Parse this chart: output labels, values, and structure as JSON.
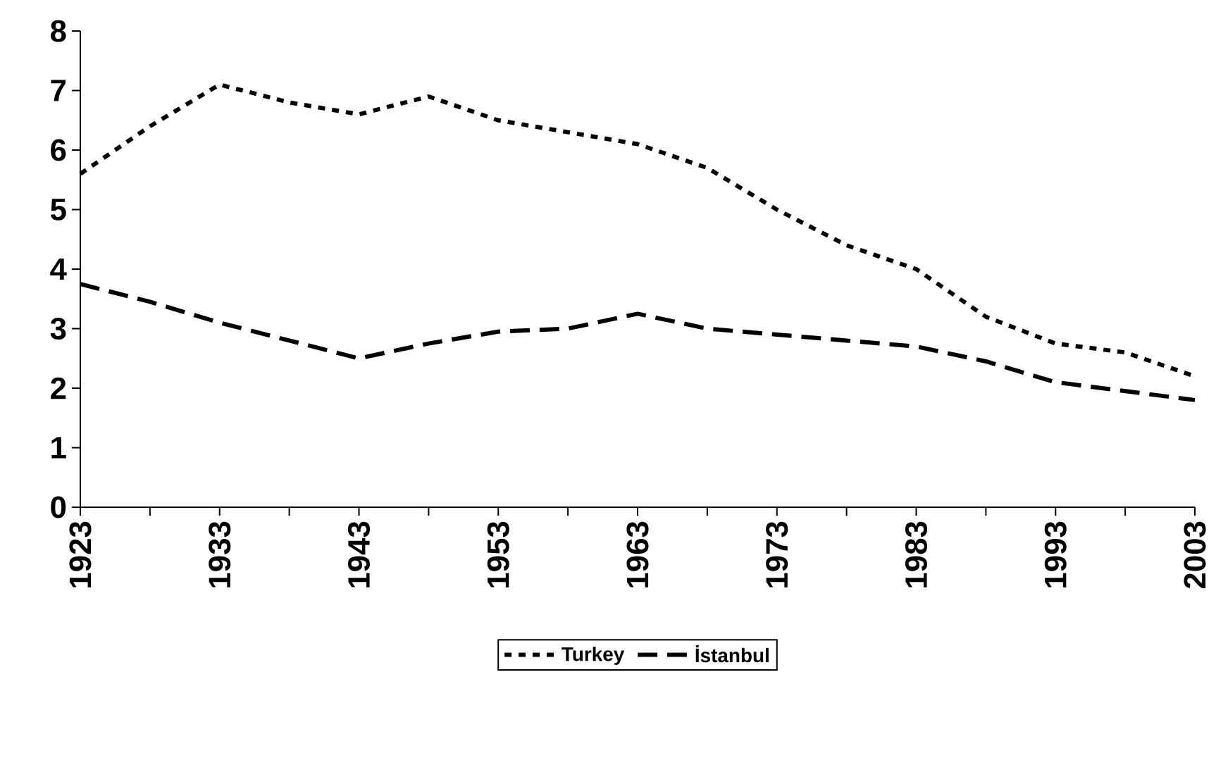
{
  "chart_data": {
    "type": "line",
    "x": [
      1923,
      1928,
      1933,
      1938,
      1943,
      1948,
      1953,
      1958,
      1963,
      1968,
      1973,
      1978,
      1983,
      1988,
      1993,
      1998,
      2003
    ],
    "series": [
      {
        "name": "Turkey",
        "color": "#000000",
        "line_style": "dotted",
        "values": [
          5.6,
          6.4,
          7.1,
          6.8,
          6.6,
          6.9,
          6.5,
          6.3,
          6.1,
          5.7,
          5.0,
          4.4,
          4.0,
          3.2,
          2.75,
          2.6,
          2.2
        ]
      },
      {
        "name": "İstanbul",
        "color": "#000000",
        "line_style": "dashed",
        "values": [
          3.75,
          3.45,
          3.1,
          2.8,
          2.5,
          2.75,
          2.95,
          3.0,
          3.25,
          3.0,
          2.9,
          2.8,
          2.7,
          2.45,
          2.1,
          1.95,
          1.8
        ]
      }
    ],
    "xlim": [
      1923,
      2003
    ],
    "xticks": [
      1923,
      {
        "value": 1928,
        "label": null
      },
      1933,
      {
        "value": 1938,
        "label": null
      },
      1943,
      {
        "value": 1948,
        "label": null
      },
      1953,
      {
        "value": 1958,
        "label": null
      },
      1963,
      {
        "value": 1968,
        "label": null
      },
      1973,
      {
        "value": 1978,
        "label": null
      },
      1983,
      {
        "value": 1988,
        "label": null
      },
      1993,
      {
        "value": 1998,
        "label": null
      },
      2003
    ],
    "ylim": [
      0,
      8
    ],
    "yticks": [
      0,
      1,
      2,
      3,
      4,
      5,
      6,
      7,
      8
    ],
    "grid": false,
    "legend": "bottom",
    "marker": "none"
  }
}
